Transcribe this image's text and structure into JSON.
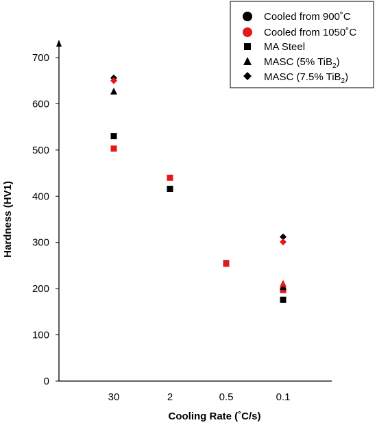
{
  "chart_data": {
    "type": "scatter",
    "xlabel": "Cooling Rate (˚C/s)",
    "ylabel": "Hardness (HV1)",
    "categories": [
      "30",
      "2",
      "0.5",
      "0.1"
    ],
    "ylim": [
      0,
      700
    ],
    "yticks": [
      0,
      100,
      200,
      300,
      400,
      500,
      600,
      700
    ],
    "grid": false,
    "legend_position": "top-right",
    "legend": {
      "color_entries": [
        {
          "label": "Cooled from 900˚C",
          "color": "#000000"
        },
        {
          "label": "Cooled from 1050˚C",
          "color": "#e31a1c"
        }
      ],
      "marker_entries": [
        {
          "label": "MA Steel",
          "marker": "square"
        },
        {
          "label_prefix": "MASC (5% TiB",
          "label_sub": "2",
          "label_suffix": ")",
          "marker": "triangle"
        },
        {
          "label_prefix": "MASC (7.5% TiB",
          "label_sub": "2",
          "label_suffix": ")",
          "marker": "diamond"
        }
      ]
    },
    "series": [
      {
        "condition": "Cooled from 900˚C",
        "material": "MA Steel",
        "marker": "square",
        "color": "#000000",
        "x": [
          "30",
          "2",
          "0.5",
          "0.1"
        ],
        "values": [
          530,
          416,
          255,
          176
        ]
      },
      {
        "condition": "Cooled from 1050˚C",
        "material": "MA Steel",
        "marker": "square",
        "color": "#e31a1c",
        "x": [
          "30",
          "2",
          "0.5",
          "0.1"
        ],
        "values": [
          503,
          440,
          254,
          197
        ]
      },
      {
        "condition": "Cooled from 900˚C",
        "material": "MASC (5% TiB2)",
        "marker": "triangle",
        "color": "#000000",
        "x": [
          "30",
          "0.1"
        ],
        "values": [
          626,
          203
        ]
      },
      {
        "condition": "Cooled from 1050˚C",
        "material": "MASC (5% TiB2)",
        "marker": "triangle",
        "color": "#e31a1c",
        "x": [
          "0.1"
        ],
        "values": [
          210
        ]
      },
      {
        "condition": "Cooled from 900˚C",
        "material": "MASC (7.5% TiB2)",
        "marker": "diamond",
        "color": "#000000",
        "x": [
          "30",
          "0.1"
        ],
        "values": [
          656,
          312
        ]
      },
      {
        "condition": "Cooled from 1050˚C",
        "material": "MASC (7.5% TiB2)",
        "marker": "diamond",
        "color": "#e31a1c",
        "x": [
          "30",
          "0.1"
        ],
        "values": [
          650,
          301
        ]
      }
    ]
  }
}
